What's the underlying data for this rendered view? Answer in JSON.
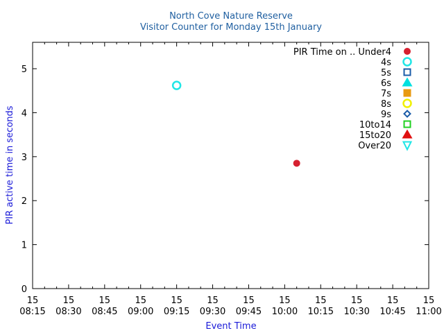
{
  "chart_data": {
    "type": "scatter",
    "title": "North Cove Nature Reserve",
    "subtitle": "Visitor Counter for Monday 15th January",
    "xlabel": "Event Time",
    "ylabel": "PIR active time in seconds",
    "x_ticks": [
      {
        "day": "15",
        "time": "08:15"
      },
      {
        "day": "15",
        "time": "08:30"
      },
      {
        "day": "15",
        "time": "08:45"
      },
      {
        "day": "15",
        "time": "09:00"
      },
      {
        "day": "15",
        "time": "09:15"
      },
      {
        "day": "15",
        "time": "09:30"
      },
      {
        "day": "15",
        "time": "09:45"
      },
      {
        "day": "15",
        "time": "10:00"
      },
      {
        "day": "15",
        "time": "10:15"
      },
      {
        "day": "15",
        "time": "10:30"
      },
      {
        "day": "15",
        "time": "10:45"
      },
      {
        "day": "15",
        "time": "11:00"
      }
    ],
    "xlim": [
      "08:15",
      "11:00"
    ],
    "y_ticks": [
      "0",
      "1",
      "2",
      "3",
      "4",
      "5"
    ],
    "ylim": [
      0,
      5.6
    ],
    "grid": false,
    "legend_position": "top-right",
    "series": [
      {
        "name": "PIR Time on .. Under4",
        "marker": "filled-circle",
        "color": "#d62030",
        "points": [
          {
            "x": "10:05",
            "y": 2.85
          }
        ]
      },
      {
        "name": "4s",
        "marker": "open-circle",
        "color": "#20e6e6",
        "points": [
          {
            "x": "09:15",
            "y": 4.62
          }
        ]
      },
      {
        "name": "5s",
        "marker": "open-square",
        "color": "#1a5ca8",
        "points": []
      },
      {
        "name": "6s",
        "marker": "filled-triangle-up",
        "color": "#00e0e0",
        "points": []
      },
      {
        "name": "7s",
        "marker": "filled-square",
        "color": "#e89a10",
        "points": []
      },
      {
        "name": "8s",
        "marker": "open-circle",
        "color": "#f0f000",
        "points": []
      },
      {
        "name": "9s",
        "marker": "open-diamond",
        "color": "#1a5ca8",
        "points": []
      },
      {
        "name": "10to14",
        "marker": "open-square",
        "color": "#20d020",
        "points": []
      },
      {
        "name": "15to20",
        "marker": "filled-triangle-up",
        "color": "#e01010",
        "points": []
      },
      {
        "name": "Over20",
        "marker": "open-triangle-down",
        "color": "#20e6e6",
        "points": []
      }
    ]
  }
}
